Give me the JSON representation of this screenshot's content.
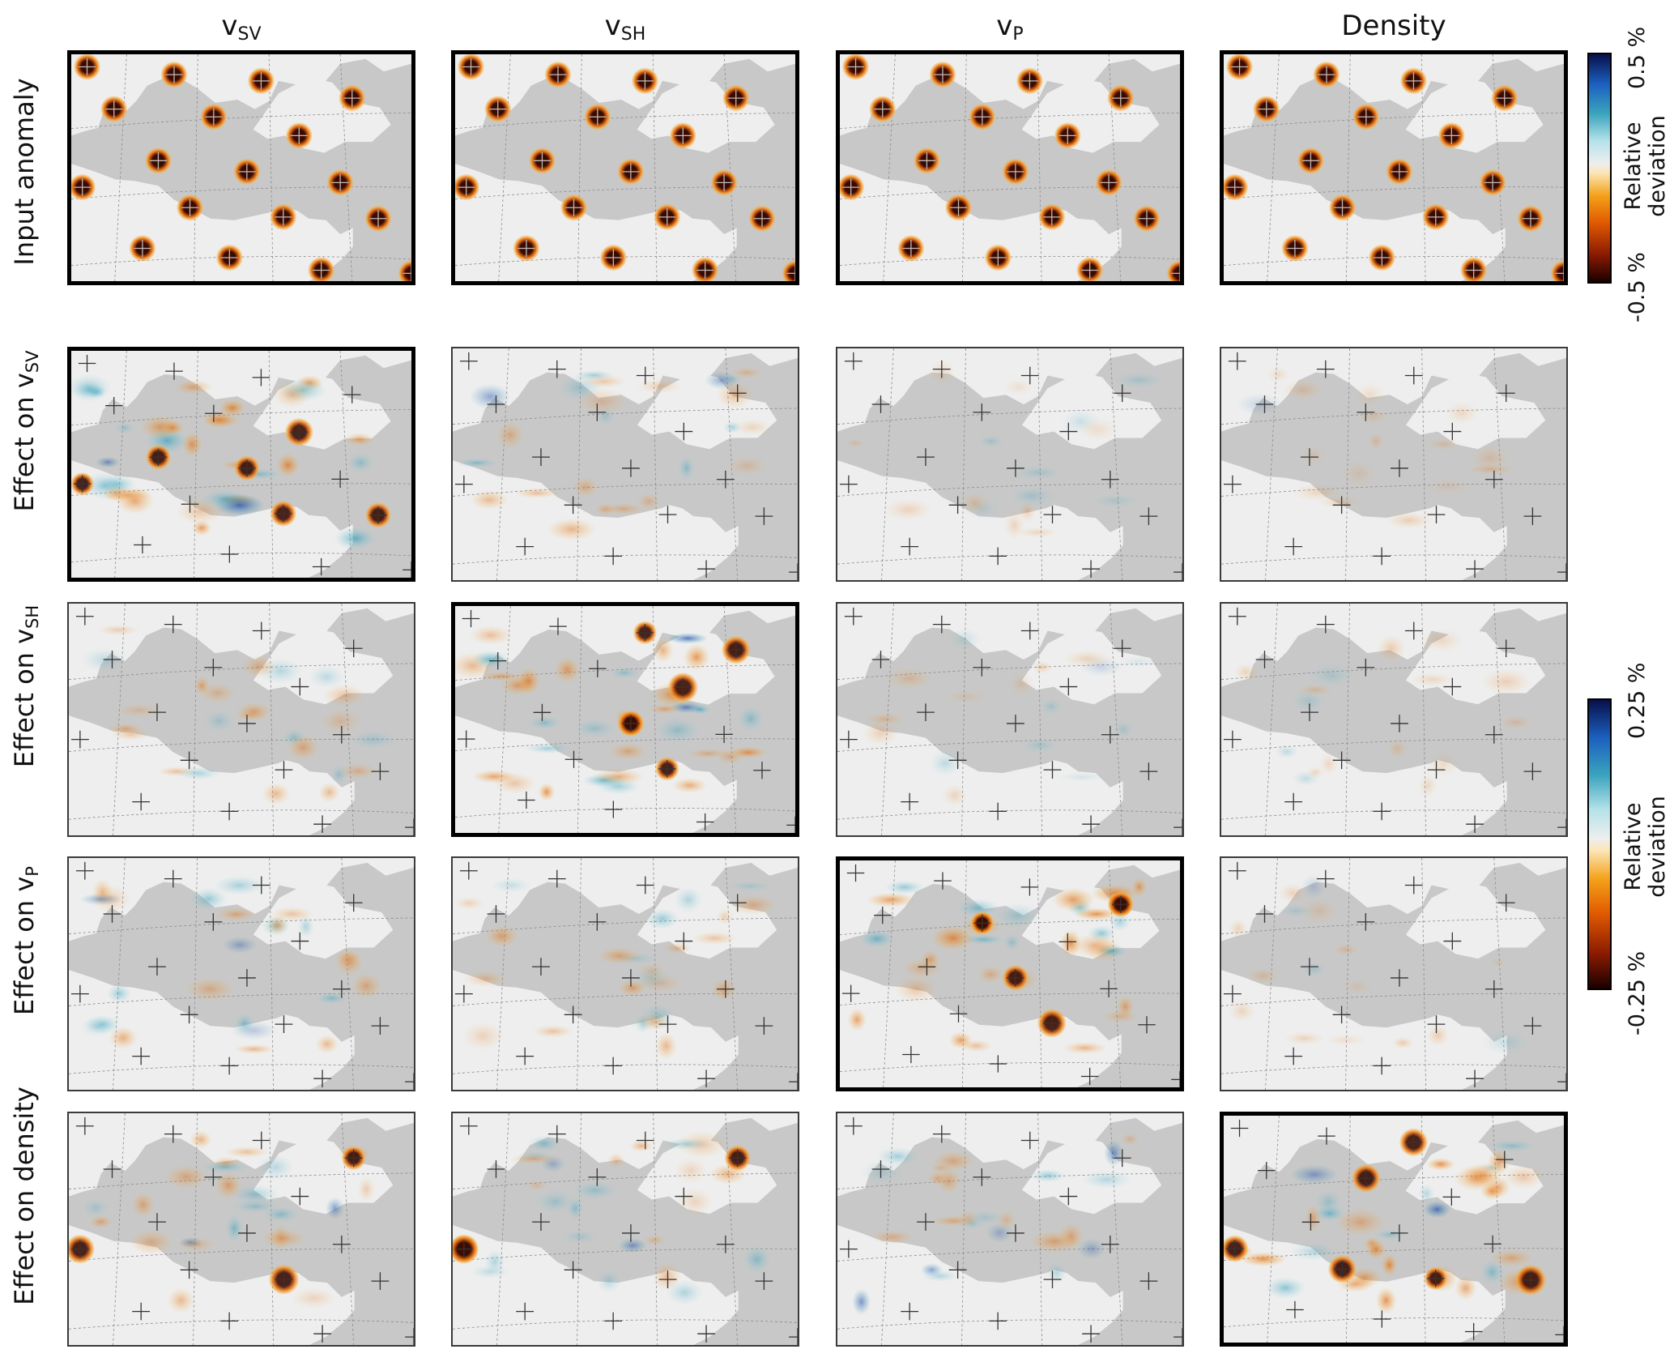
{
  "columns": [
    {
      "base": "v",
      "sub": "SV"
    },
    {
      "base": "v",
      "sub": "SH"
    },
    {
      "base": "v",
      "sub": "P"
    },
    {
      "base": "Density",
      "sub": ""
    }
  ],
  "rows": [
    {
      "text": "Input anomaly",
      "sub": ""
    },
    {
      "text": "Effect on v",
      "sub": "SV"
    },
    {
      "text": "Effect on v",
      "sub": "SH"
    },
    {
      "text": "Effect on v",
      "sub": "P"
    },
    {
      "text": "Effect on density",
      "sub": ""
    }
  ],
  "colorbar_top": {
    "title_line1": "Relative",
    "title_line2": "deviation",
    "max_label": "0.5 %",
    "min_label": "-0.5 %"
  },
  "colorbar_bottom": {
    "title_line1": "Relative",
    "title_line2": "deviation",
    "max_label": "0.25 %",
    "min_label": "-0.25 %"
  },
  "colors": {
    "sea": "#c8c8c8",
    "land": "#eeeeee",
    "negative_dark": "#3a0a00",
    "negative_mid": "#e06a10",
    "negative_light": "#f6b040",
    "positive_light": "#8ccfdc",
    "positive_mid": "#2a9ab8",
    "positive_dark": "#1a3fa8"
  }
}
